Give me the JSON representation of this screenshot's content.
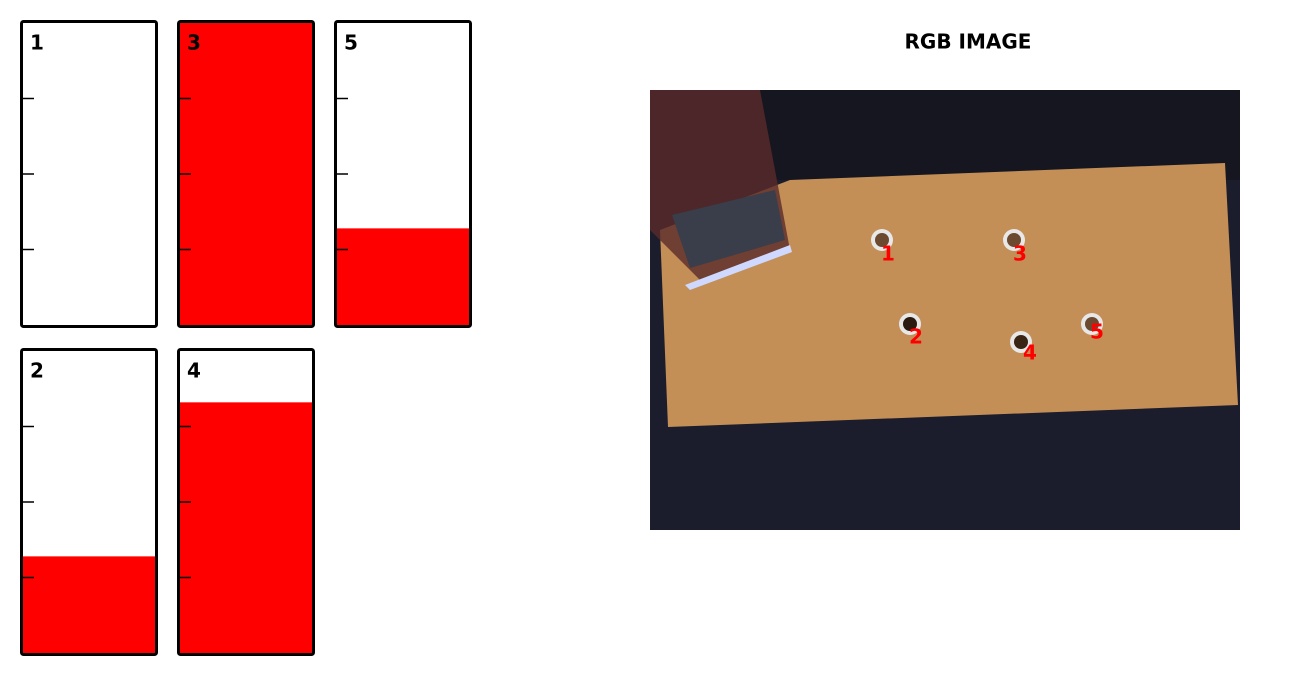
{
  "gauges": {
    "ylim": [
      0,
      100
    ],
    "yticks": [
      25,
      50,
      75
    ],
    "color": "#ff0000",
    "items": [
      {
        "label": "1",
        "value": 0
      },
      {
        "label": "3",
        "value": 100
      },
      {
        "label": "5",
        "value": 32
      },
      {
        "label": "2",
        "value": 32
      },
      {
        "label": "4",
        "value": 83
      }
    ]
  },
  "image": {
    "title": "RGB IMAGE",
    "markers": [
      "1",
      "2",
      "3",
      "4",
      "5"
    ]
  }
}
